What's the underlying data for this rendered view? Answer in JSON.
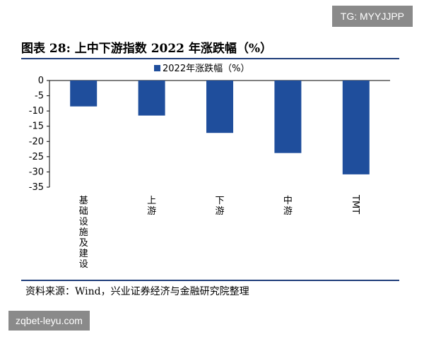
{
  "watermark_top": "TG: MYYJJPP",
  "watermark_bottom": "zqbet-leyu.com",
  "figure_title": "图表 28:  上中下游指数 2022 年涨跌幅（%）",
  "source": "资料来源：Wind，兴业证券经济与金融研究院整理",
  "colors": {
    "bar": "#1f4e9c",
    "rule": "#1f3e7a"
  },
  "chart_data": {
    "type": "bar",
    "categories": [
      "基础设施及建设",
      "上游",
      "下游",
      "中游",
      "TMT"
    ],
    "series": [
      {
        "name": "2022年涨跌幅（%）",
        "values": [
          -8.5,
          -11.5,
          -17.2,
          -23.8,
          -30.8
        ]
      }
    ],
    "ylim": [
      -35,
      0
    ],
    "yticks": [
      0,
      -5,
      -10,
      -15,
      -20,
      -25,
      -30,
      -35
    ],
    "legend": "top-center",
    "grid": false
  }
}
